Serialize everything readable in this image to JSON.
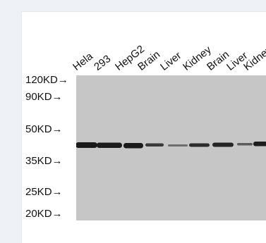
{
  "lanes": [
    "Hela",
    "293",
    "HepG2",
    "Brain",
    "Liver",
    "Kidney",
    "Brain",
    "Liver",
    "Kidney"
  ],
  "markers": [
    "120KD→",
    "90KD→",
    "50KD→",
    "35KD→",
    "25KD→",
    "20KD→"
  ],
  "colors": {
    "page_background": "#eef2f7",
    "card": "#ffffff",
    "membrane": "#c6c6c6",
    "band": "#1a1a1a"
  }
}
